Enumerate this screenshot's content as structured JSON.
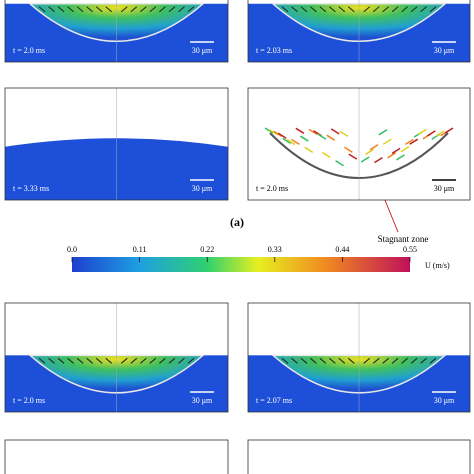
{
  "panels": [
    {
      "time": "t = 2.0 ms",
      "scale": "30 μm"
    },
    {
      "time": "t = 2.03 ms",
      "scale": "30 μm"
    },
    {
      "time": "t = 3.33 ms",
      "scale": "30 μm"
    },
    {
      "time": "t = 2.0 ms",
      "scale": "30 μm"
    },
    {
      "time": "t = 2.0 ms",
      "scale": "30 μm"
    },
    {
      "time": "t = 2.07 ms",
      "scale": "30 μm"
    }
  ],
  "label_a": "(a)",
  "annotation": "Stagnant zone",
  "colorbar": {
    "ticks": [
      {
        "value": 0,
        "label": "0.0"
      },
      0.11,
      0.22,
      0.33,
      0.44,
      0.55
    ],
    "unit": "U (m/s)"
  }
}
